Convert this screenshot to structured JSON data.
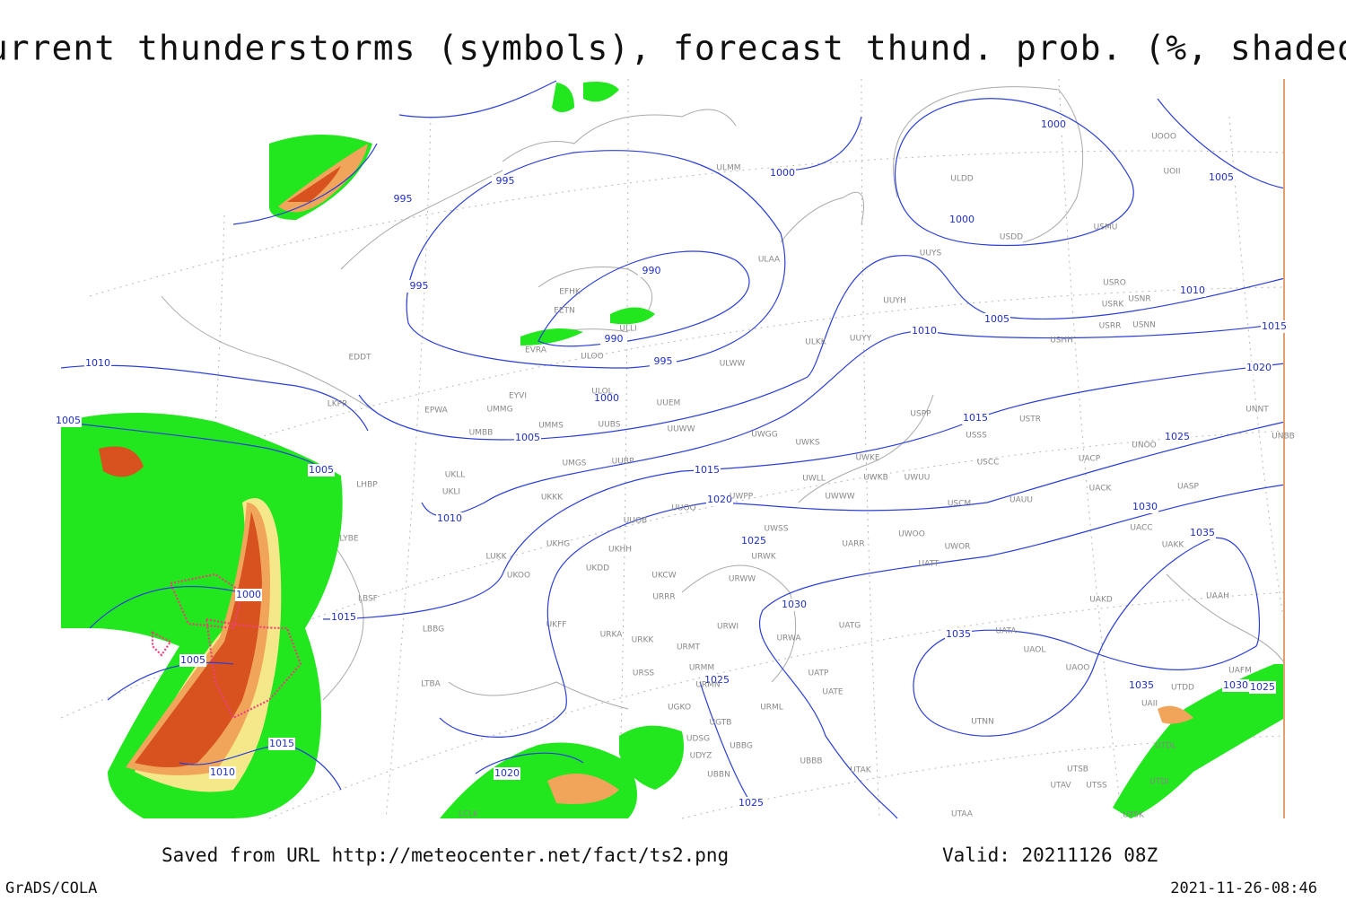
{
  "header": {
    "title": "Current thunderstorms (symbols), forecast thund. prob. (%, shaded)"
  },
  "footer": {
    "source": "Saved from URL  http://meteocenter.net/fact/ts2.png",
    "valid": "Valid: 20211126 08Z",
    "software": "GrADS/COLA",
    "timestamp": "2021-11-26-08:46"
  },
  "isobar_labels": [
    "995",
    "995",
    "995",
    "990",
    "990",
    "995",
    "1000",
    "1000",
    "1000",
    "1005",
    "1000",
    "1005",
    "1010",
    "1005",
    "1005",
    "1010",
    "1005",
    "1010",
    "1015",
    "1020",
    "1015",
    "1025",
    "1015",
    "1020",
    "1010",
    "1030",
    "1035",
    "1025",
    "1000",
    "1015",
    "1030",
    "1035",
    "1005",
    "1025",
    "1035",
    "1030",
    "1025",
    "1015",
    "1010",
    "1020",
    "1025"
  ],
  "stations": [
    "ULMM",
    "ULDD",
    "UOOO",
    "UOII",
    "USDD",
    "USMU",
    "ULAA",
    "UUYS",
    "USRO",
    "USRK",
    "USNR",
    "UUYH",
    "USRR",
    "USNN",
    "EFHK",
    "EETN",
    "ULLI",
    "EVRA",
    "ULOO",
    "ULKK",
    "UUYY",
    "USHH",
    "ULWW",
    "EDDT",
    "EYVI",
    "ULOL",
    "UUEM",
    "UMMG",
    "LKPR",
    "EPWA",
    "UMMS",
    "UUBS",
    "UUWW",
    "UMBB",
    "USPP",
    "USTR",
    "USSS",
    "UWGG",
    "UWKS",
    "UNNT",
    "UNBB",
    "UNOO",
    "UWKE",
    "USCC",
    "UACP",
    "UMGS",
    "UUBP",
    "UKLL",
    "UWKB",
    "UWUU",
    "UWLL",
    "UACK",
    "UASP",
    "LHBP",
    "UKLI",
    "UKKK",
    "UUOO",
    "UWPP",
    "UWWW",
    "USCM",
    "UAUU",
    "UACC",
    "LYBE",
    "UUOB",
    "UWSS",
    "UWOO",
    "UWOR",
    "UAKK",
    "UKHG",
    "UKHH",
    "UARR",
    "LUKK",
    "UKDD",
    "UKOO",
    "UKCW",
    "URWK",
    "UATT",
    "URRR",
    "URWW",
    "UAKD",
    "LBSF",
    "UAAH",
    "UKFF",
    "URWI",
    "UATG",
    "LBBG",
    "URKA",
    "URKK",
    "URMT",
    "URWA",
    "UATA",
    "UAOL",
    "LTBA",
    "URSS",
    "URMM",
    "UATP",
    "UAOO",
    "UAFM",
    "URMN",
    "UATE",
    "UTDD",
    "UGKO",
    "URML",
    "UAII",
    "UTNN",
    "UGTB",
    "UDSG",
    "UBBG",
    "UTDL",
    "UDYZ",
    "UBBB",
    "UTSB",
    "UBBN",
    "UTAK",
    "UTAV",
    "UTSS",
    "UTDI",
    "LCLK",
    "UTAA",
    "UTSK"
  ]
}
